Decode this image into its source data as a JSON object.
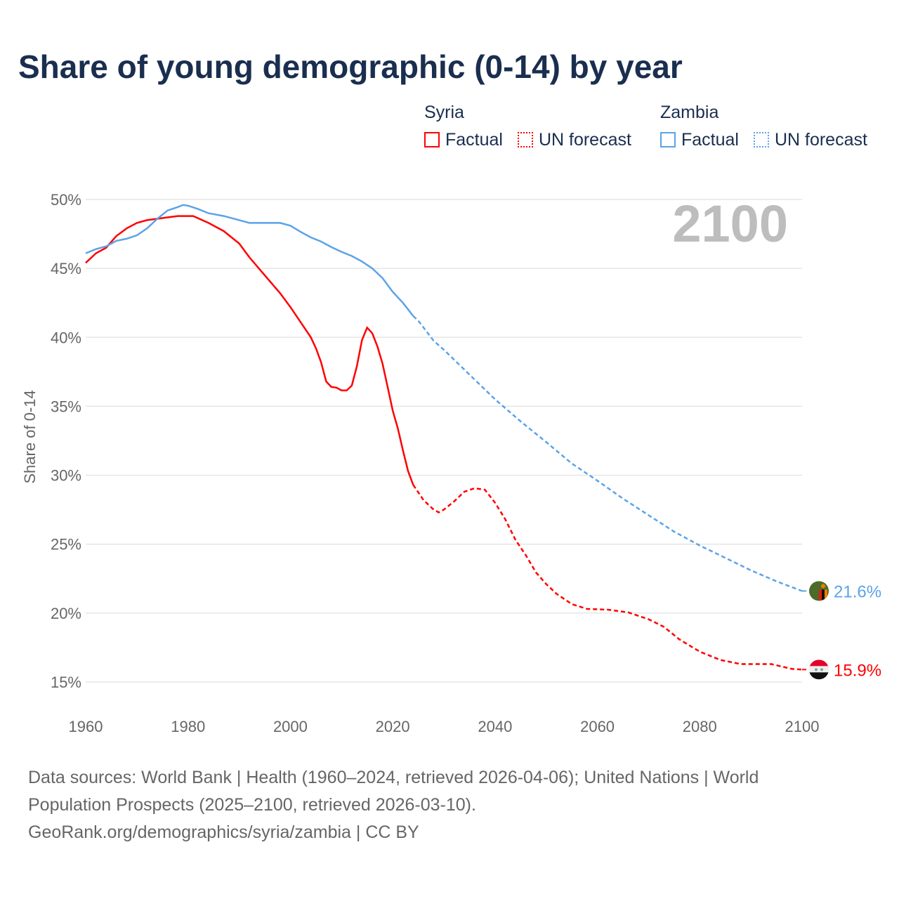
{
  "title": "Share of young demographic (0-14) by year",
  "year_label": "2100",
  "legend": {
    "groups": [
      {
        "name": "Syria",
        "color": "#ff0000",
        "items": [
          "Factual",
          "UN forecast"
        ]
      },
      {
        "name": "Zambia",
        "color": "#5ba3e8",
        "items": [
          "Factual",
          "UN forecast"
        ]
      }
    ]
  },
  "footer": {
    "line1": "Data sources: World Bank | Health (1960–2024, retrieved 2026-04-06); United Nations | World Population Prospects (2025–2100, retrieved 2026-03-10).",
    "line2": "GeoRank.org/demographics/syria/zambia | CC BY"
  },
  "chart_data": {
    "type": "line",
    "title": "Share of young demographic (0-14) by year",
    "xlabel": "",
    "ylabel": "Share of 0-14",
    "xlim": [
      1960,
      2100
    ],
    "ylim": [
      13,
      51
    ],
    "xticks": [
      1960,
      1980,
      2000,
      2020,
      2040,
      2060,
      2080,
      2100
    ],
    "xtick_labels": [
      "1960",
      "1980",
      "2000",
      "2020",
      "2040",
      "2060",
      "2080",
      "2100"
    ],
    "yticks": [
      15,
      20,
      25,
      30,
      35,
      40,
      45,
      50
    ],
    "ytick_labels": [
      "15%",
      "20%",
      "25%",
      "30%",
      "35%",
      "40%",
      "45%",
      "50%"
    ],
    "forecast_start": 2024,
    "series": [
      {
        "name": "Syria",
        "color": "#ff0000",
        "end_label": "15.9%",
        "flag": "syria",
        "x": [
          1960,
          1962,
          1964,
          1966,
          1968,
          1970,
          1972,
          1974,
          1976,
          1978,
          1981,
          1984,
          1987,
          1990,
          1992,
          1995,
          1998,
          2000,
          2002,
          2004,
          2005,
          2006,
          2007,
          2008,
          2009,
          2010,
          2011,
          2012,
          2013,
          2014,
          2015,
          2016,
          2017,
          2018,
          2019,
          2020,
          2021,
          2022,
          2023,
          2024,
          2026,
          2028,
          2029,
          2030,
          2032,
          2034,
          2036,
          2038,
          2040,
          2042,
          2044,
          2046,
          2048,
          2050,
          2052,
          2055,
          2058,
          2062,
          2066,
          2070,
          2073,
          2076,
          2080,
          2084,
          2088,
          2094,
          2098,
          2100
        ],
        "y": [
          45.4,
          46.1,
          46.5,
          47.35,
          47.9,
          48.3,
          48.5,
          48.6,
          48.7,
          48.8,
          48.8,
          48.3,
          47.7,
          46.8,
          45.8,
          44.5,
          43.2,
          42.2,
          41.1,
          40.0,
          39.2,
          38.2,
          36.8,
          36.4,
          36.35,
          36.15,
          36.15,
          36.5,
          37.9,
          39.8,
          40.7,
          40.3,
          39.35,
          38.1,
          36.4,
          34.7,
          33.4,
          31.8,
          30.3,
          29.3,
          28.2,
          27.5,
          27.3,
          27.5,
          28.1,
          28.8,
          29.05,
          28.95,
          28.0,
          26.8,
          25.3,
          24.2,
          22.95,
          22.1,
          21.4,
          20.65,
          20.3,
          20.25,
          20.05,
          19.55,
          19.0,
          18.1,
          17.2,
          16.6,
          16.3,
          16.3,
          15.95,
          15.9
        ]
      },
      {
        "name": "Zambia",
        "color": "#5ba3e8",
        "end_label": "21.6%",
        "flag": "zambia",
        "x": [
          1960,
          1962,
          1964,
          1966,
          1968,
          1970,
          1972,
          1974,
          1976,
          1978,
          1979,
          1980,
          1982,
          1984,
          1987,
          1990,
          1992,
          1998,
          2000,
          2002,
          2004,
          2006,
          2008,
          2010,
          2012,
          2014,
          2016,
          2018,
          2020,
          2022,
          2024,
          2025,
          2028,
          2030,
          2035,
          2040,
          2045,
          2050,
          2055,
          2060,
          2065,
          2070,
          2075,
          2080,
          2085,
          2090,
          2095,
          2100
        ],
        "y": [
          46.1,
          46.4,
          46.6,
          47.0,
          47.15,
          47.4,
          47.9,
          48.6,
          49.2,
          49.45,
          49.6,
          49.55,
          49.3,
          49.0,
          48.8,
          48.5,
          48.3,
          48.3,
          48.1,
          47.65,
          47.25,
          46.95,
          46.55,
          46.2,
          45.9,
          45.5,
          45.0,
          44.3,
          43.3,
          42.5,
          41.55,
          41.2,
          39.75,
          39.1,
          37.3,
          35.5,
          33.9,
          32.4,
          30.85,
          29.6,
          28.3,
          27.1,
          25.9,
          24.9,
          24.0,
          23.1,
          22.3,
          21.6
        ]
      }
    ]
  }
}
